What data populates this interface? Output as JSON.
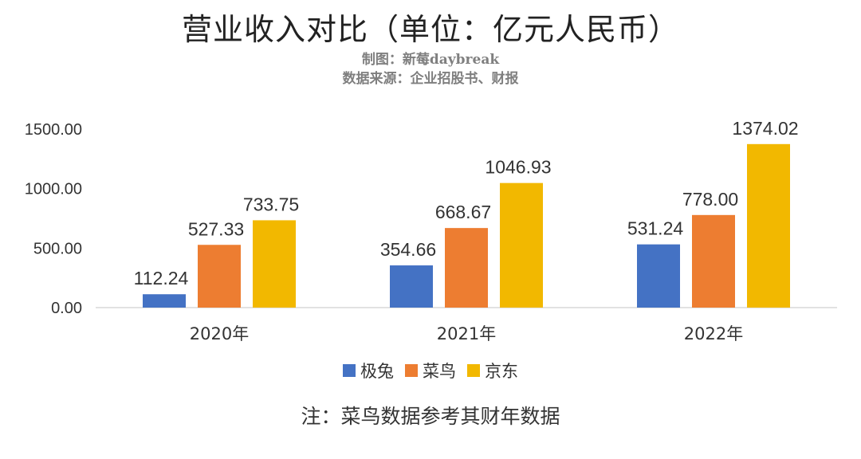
{
  "header": {
    "title": "营业收入对比（单位：亿元人民币）",
    "credit": "制图：新莓daybreak",
    "source": "数据来源：企业招股书、财报"
  },
  "chart_data": {
    "type": "bar",
    "categories": [
      "2020年",
      "2021年",
      "2022年"
    ],
    "series": [
      {
        "name": "极兔",
        "color": "#4472c4",
        "values": [
          112.24,
          354.66,
          531.24
        ]
      },
      {
        "name": "菜鸟",
        "color": "#ed7d31",
        "values": [
          527.33,
          668.67,
          778.0
        ]
      },
      {
        "name": "京东",
        "color": "#f2b800",
        "values": [
          733.75,
          1046.93,
          1374.02
        ]
      }
    ],
    "y_ticks": [
      "0.00",
      "500.00",
      "1000.00",
      "1500.00"
    ],
    "ylim": [
      0,
      1500
    ],
    "grid": false,
    "legend_position": "bottom"
  },
  "legend": [
    {
      "name": "极兔",
      "color": "#4472c4"
    },
    {
      "name": "菜鸟",
      "color": "#ed7d31"
    },
    {
      "name": "京东",
      "color": "#f2b800"
    }
  ],
  "footer": {
    "note": "注：菜鸟数据参考其财年数据"
  }
}
